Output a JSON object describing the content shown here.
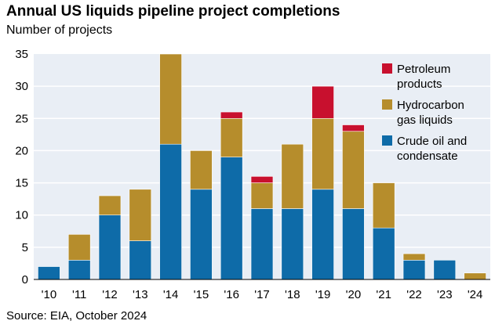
{
  "chart_data": {
    "type": "bar",
    "stacked": true,
    "title": "Annual US liquids pipeline project completions",
    "subtitle": "Number of projects",
    "source": "Source: EIA, October 2024",
    "categories": [
      "'10",
      "'11",
      "'12",
      "'13",
      "'14",
      "'15",
      "'16",
      "'17",
      "'18",
      "'19",
      "'20",
      "'21",
      "'22",
      "'23",
      "'24"
    ],
    "series": [
      {
        "name": "Crude oil and condensate",
        "color": "#0e6ba8",
        "values": [
          2,
          3,
          10,
          6,
          21,
          14,
          19,
          11,
          11,
          14,
          11,
          8,
          3,
          3,
          0
        ]
      },
      {
        "name": "Hydrocarbon gas liquids",
        "color": "#b68d2c",
        "values": [
          0,
          4,
          3,
          8,
          14,
          6,
          6,
          4,
          10,
          11,
          12,
          7,
          1,
          0,
          1
        ]
      },
      {
        "name": "Petroleum products",
        "color": "#c8102e",
        "values": [
          0,
          0,
          0,
          0,
          0,
          0,
          1,
          1,
          0,
          5,
          1,
          0,
          0,
          0,
          0
        ]
      }
    ],
    "legend": [
      {
        "label_lines": [
          "Petroleum",
          "products"
        ],
        "color": "#c8102e"
      },
      {
        "label_lines": [
          "Hydrocarbon",
          "gas liquids"
        ],
        "color": "#b68d2c"
      },
      {
        "label_lines": [
          "Crude oil and",
          "condensate"
        ],
        "color": "#0e6ba8"
      }
    ],
    "ylim": [
      0,
      35
    ],
    "yticks": [
      0,
      5,
      10,
      15,
      20,
      25,
      30,
      35
    ],
    "grid": true,
    "legend_position": "top-right",
    "plot_background": "#e9eef5",
    "grid_color": "#ffffff"
  }
}
